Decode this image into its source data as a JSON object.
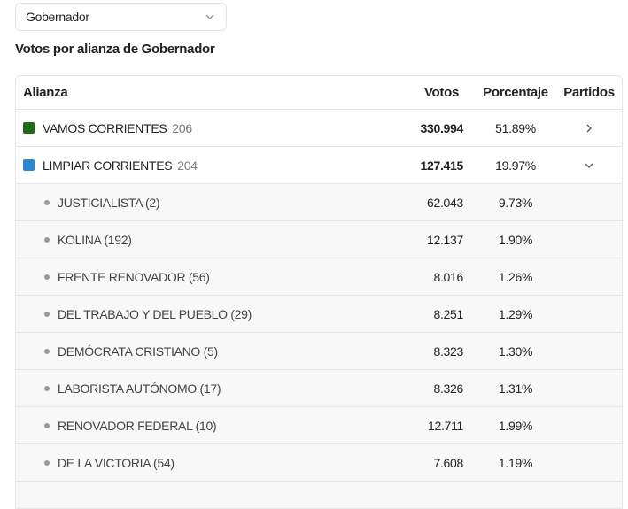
{
  "selector": {
    "value": "Gobernador",
    "icon": "chevron-down-icon"
  },
  "section_title": "Votos por alianza de Gobernador",
  "table": {
    "headers": {
      "alianza": "Alianza",
      "votos": "Votos",
      "porcentaje": "Porcentaje",
      "partidos": "Partidos"
    },
    "alliances": [
      {
        "name": "VAMOS CORRIENTES",
        "count": "206",
        "votes": "330.994",
        "pct": "51.89%",
        "color": "#1e6b16",
        "expanded": false
      },
      {
        "name": "LIMPIAR CORRIENTES",
        "count": "204",
        "votes": "127.415",
        "pct": "19.97%",
        "color": "#2e86d1",
        "expanded": true
      }
    ],
    "parties": [
      {
        "name": "JUSTICIALISTA (2)",
        "votes": "62.043",
        "pct": "9.73%"
      },
      {
        "name": "KOLINA (192)",
        "votes": "12.137",
        "pct": "1.90%"
      },
      {
        "name": "FRENTE RENOVADOR (56)",
        "votes": "8.016",
        "pct": "1.26%"
      },
      {
        "name": "DEL TRABAJO Y DEL PUEBLO (29)",
        "votes": "8.251",
        "pct": "1.29%"
      },
      {
        "name": "DEMÓCRATA CRISTIANO (5)",
        "votes": "8.323",
        "pct": "1.30%"
      },
      {
        "name": "LABORISTA AUTÓNOMO (17)",
        "votes": "8.326",
        "pct": "1.31%"
      },
      {
        "name": "RENOVADOR FEDERAL (10)",
        "votes": "12.711",
        "pct": "1.99%"
      },
      {
        "name": "DE LA VICTORIA (54)",
        "votes": "7.608",
        "pct": "1.19%"
      }
    ]
  }
}
